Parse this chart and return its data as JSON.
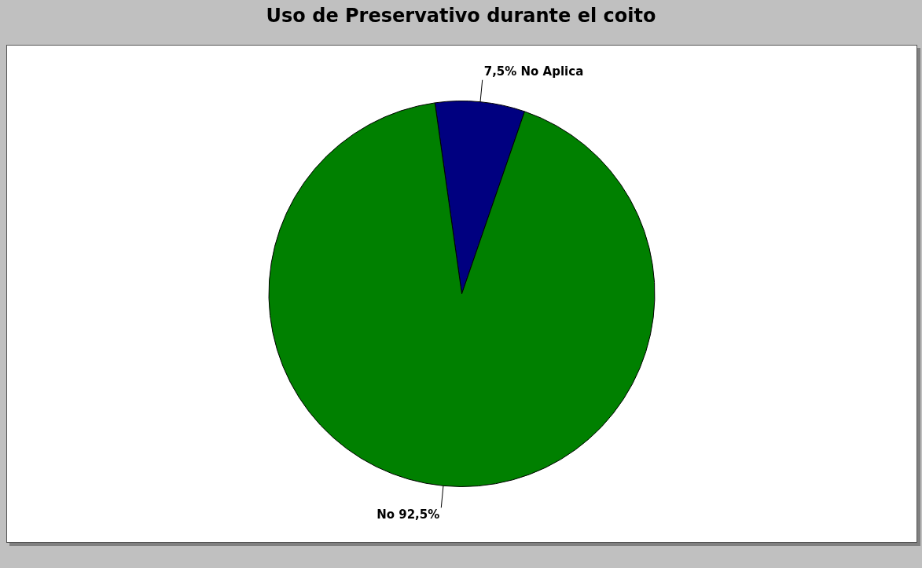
{
  "chart_data": {
    "type": "pie",
    "title": "Uso de Preservativo durante el coito",
    "categories": [
      "No Aplica",
      "No"
    ],
    "values": [
      7.5,
      92.5
    ],
    "colors": [
      "#000080",
      "#008000"
    ],
    "value_labels": [
      "7,5%",
      "92,5%"
    ],
    "legend": false
  }
}
